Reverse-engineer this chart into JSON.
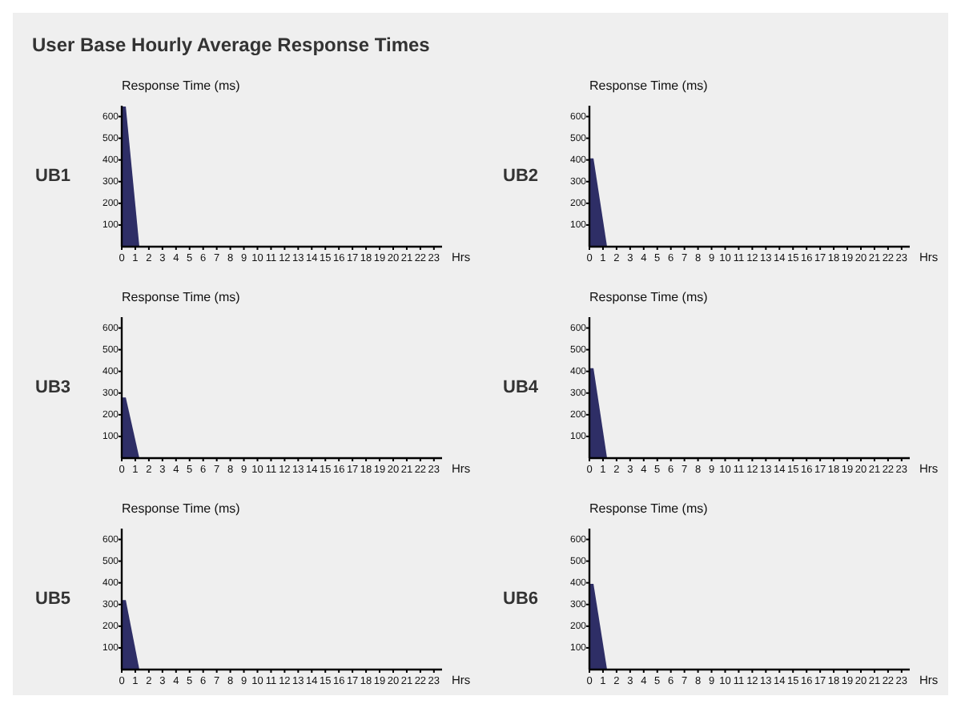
{
  "chart_data": [
    {
      "type": "other",
      "title": "User Base Hourly Average Response Times"
    },
    {
      "type": "area",
      "title": "UB1",
      "ylabel": "Response Time (ms)",
      "xlabel": "Hrs",
      "x": [
        0,
        0.3,
        1.3
      ],
      "values": [
        646,
        646,
        0
      ],
      "color": "#2e2e66",
      "xlim": [
        0,
        23.6
      ],
      "ylim": [
        0,
        650
      ],
      "xticks": [
        0,
        1,
        2,
        3,
        4,
        5,
        6,
        7,
        8,
        9,
        10,
        11,
        12,
        13,
        14,
        15,
        16,
        17,
        18,
        19,
        20,
        21,
        22,
        23
      ],
      "yticks": [
        100,
        200,
        300,
        400,
        500,
        600
      ],
      "grid": false
    },
    {
      "type": "area",
      "title": "UB2",
      "ylabel": "Response Time (ms)",
      "xlabel": "Hrs",
      "x": [
        0,
        0.3,
        1.3
      ],
      "values": [
        407,
        407,
        0
      ],
      "color": "#2e2e66",
      "xlim": [
        0,
        23.6
      ],
      "ylim": [
        0,
        650
      ],
      "xticks": [
        0,
        1,
        2,
        3,
        4,
        5,
        6,
        7,
        8,
        9,
        10,
        11,
        12,
        13,
        14,
        15,
        16,
        17,
        18,
        19,
        20,
        21,
        22,
        23
      ],
      "yticks": [
        100,
        200,
        300,
        400,
        500,
        600
      ],
      "grid": false
    },
    {
      "type": "area",
      "title": "UB3",
      "ylabel": "Response Time (ms)",
      "xlabel": "Hrs",
      "x": [
        0,
        0.3,
        1.3
      ],
      "values": [
        280,
        280,
        0
      ],
      "color": "#2e2e66",
      "xlim": [
        0,
        23.6
      ],
      "ylim": [
        0,
        650
      ],
      "xticks": [
        0,
        1,
        2,
        3,
        4,
        5,
        6,
        7,
        8,
        9,
        10,
        11,
        12,
        13,
        14,
        15,
        16,
        17,
        18,
        19,
        20,
        21,
        22,
        23
      ],
      "yticks": [
        100,
        200,
        300,
        400,
        500,
        600
      ],
      "grid": false
    },
    {
      "type": "area",
      "title": "UB4",
      "ylabel": "Response Time (ms)",
      "xlabel": "Hrs",
      "x": [
        0,
        0.3,
        1.3
      ],
      "values": [
        415,
        415,
        0
      ],
      "color": "#2e2e66",
      "xlim": [
        0,
        23.6
      ],
      "ylim": [
        0,
        650
      ],
      "xticks": [
        0,
        1,
        2,
        3,
        4,
        5,
        6,
        7,
        8,
        9,
        10,
        11,
        12,
        13,
        14,
        15,
        16,
        17,
        18,
        19,
        20,
        21,
        22,
        23
      ],
      "yticks": [
        100,
        200,
        300,
        400,
        500,
        600
      ],
      "grid": false
    },
    {
      "type": "area",
      "title": "UB5",
      "ylabel": "Response Time (ms)",
      "xlabel": "Hrs",
      "x": [
        0,
        0.3,
        1.3
      ],
      "values": [
        320,
        320,
        0
      ],
      "color": "#2e2e66",
      "xlim": [
        0,
        23.6
      ],
      "ylim": [
        0,
        650
      ],
      "xticks": [
        0,
        1,
        2,
        3,
        4,
        5,
        6,
        7,
        8,
        9,
        10,
        11,
        12,
        13,
        14,
        15,
        16,
        17,
        18,
        19,
        20,
        21,
        22,
        23
      ],
      "yticks": [
        100,
        200,
        300,
        400,
        500,
        600
      ],
      "grid": false
    },
    {
      "type": "area",
      "title": "UB6",
      "ylabel": "Response Time (ms)",
      "xlabel": "Hrs",
      "x": [
        0,
        0.3,
        1.3
      ],
      "values": [
        395,
        395,
        0
      ],
      "color": "#2e2e66",
      "xlim": [
        0,
        23.6
      ],
      "ylim": [
        0,
        650
      ],
      "xticks": [
        0,
        1,
        2,
        3,
        4,
        5,
        6,
        7,
        8,
        9,
        10,
        11,
        12,
        13,
        14,
        15,
        16,
        17,
        18,
        19,
        20,
        21,
        22,
        23
      ],
      "yticks": [
        100,
        200,
        300,
        400,
        500,
        600
      ],
      "grid": false
    }
  ]
}
